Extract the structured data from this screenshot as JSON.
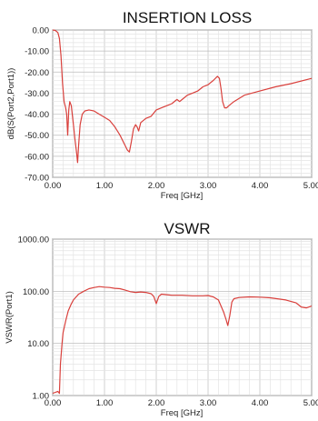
{
  "chart_data": [
    {
      "type": "line",
      "title": "INSERTION LOSS",
      "xlabel": "Freq [GHz]",
      "ylabel": "dB(S(Port2,Port1))",
      "xlim": [
        0,
        5
      ],
      "ylim": [
        -70,
        0
      ],
      "xticks": [
        "0.00",
        "1.00",
        "2.00",
        "3.00",
        "4.00",
        "5.00"
      ],
      "yticks": [
        "0.00",
        "-10.00",
        "-20.00",
        "-30.00",
        "-40.00",
        "-50.00",
        "-60.00",
        "-70.00"
      ],
      "grid": true,
      "line_color": "#d9403c",
      "series": [
        {
          "x": [
            0.0,
            0.05,
            0.1,
            0.13,
            0.16,
            0.19,
            0.22,
            0.25,
            0.27,
            0.29,
            0.31,
            0.33,
            0.36,
            0.4,
            0.43,
            0.46,
            0.48,
            0.5,
            0.53,
            0.57,
            0.62,
            0.7,
            0.8,
            0.9,
            1.0,
            1.1,
            1.2,
            1.3,
            1.38,
            1.44,
            1.48,
            1.52,
            1.56,
            1.6,
            1.63,
            1.66,
            1.7,
            1.8,
            1.9,
            2.0,
            2.1,
            2.2,
            2.3,
            2.4,
            2.45,
            2.5,
            2.6,
            2.7,
            2.8,
            2.9,
            3.0,
            3.1,
            3.18,
            3.22,
            3.25,
            3.28,
            3.32,
            3.36,
            3.4,
            3.5,
            3.7,
            4.0,
            4.3,
            4.6,
            5.0
          ],
          "y": [
            0.0,
            -0.2,
            -1.2,
            -4,
            -12,
            -25,
            -34,
            -37,
            -40,
            -50,
            -38,
            -34,
            -36,
            -45,
            -52,
            -58,
            -63,
            -55,
            -45,
            -40,
            -38.5,
            -38,
            -38.5,
            -40,
            -41.5,
            -43,
            -46,
            -50,
            -54,
            -57,
            -58,
            -53,
            -47,
            -45,
            -46,
            -48,
            -44,
            -42,
            -41,
            -38,
            -37,
            -36,
            -35,
            -33,
            -34,
            -33,
            -31,
            -30,
            -29,
            -27,
            -26,
            -24,
            -22,
            -23,
            -28,
            -34,
            -37,
            -37,
            -36,
            -34,
            -31,
            -29,
            -27,
            -25.5,
            -23
          ]
        }
      ]
    },
    {
      "type": "line",
      "title": "VSWR",
      "xlabel": "Freq [GHz]",
      "ylabel": "VSWR(Port1)",
      "xlim": [
        0,
        5
      ],
      "ylim": [
        1,
        1000
      ],
      "yscale": "log",
      "xticks": [
        "0.00",
        "1.00",
        "2.00",
        "3.00",
        "4.00",
        "5.00"
      ],
      "yticks": [
        "1.00",
        "10.00",
        "100.00",
        "1000.00"
      ],
      "grid": true,
      "line_color": "#d9403c",
      "series": [
        {
          "x": [
            0.0,
            0.05,
            0.1,
            0.13,
            0.15,
            0.18,
            0.2,
            0.25,
            0.3,
            0.35,
            0.4,
            0.5,
            0.6,
            0.7,
            0.8,
            0.9,
            1.0,
            1.1,
            1.2,
            1.3,
            1.4,
            1.5,
            1.6,
            1.7,
            1.8,
            1.9,
            1.95,
            2.0,
            2.05,
            2.1,
            2.2,
            2.3,
            2.5,
            2.7,
            2.9,
            3.0,
            3.1,
            3.2,
            3.3,
            3.35,
            3.38,
            3.42,
            3.46,
            3.5,
            3.6,
            3.8,
            4.0,
            4.2,
            4.5,
            4.7,
            4.8,
            4.9,
            5.0
          ],
          "y": [
            1.1,
            1.15,
            1.2,
            1.1,
            4,
            10,
            16,
            27,
            42,
            55,
            68,
            88,
            100,
            112,
            118,
            123,
            120,
            118,
            114,
            112,
            105,
            98,
            95,
            97,
            95,
            90,
            80,
            58,
            80,
            88,
            86,
            84,
            84,
            82,
            82,
            83,
            78,
            68,
            40,
            28,
            22,
            34,
            62,
            72,
            76,
            78,
            77,
            75,
            68,
            60,
            50,
            48,
            52
          ]
        }
      ]
    }
  ]
}
